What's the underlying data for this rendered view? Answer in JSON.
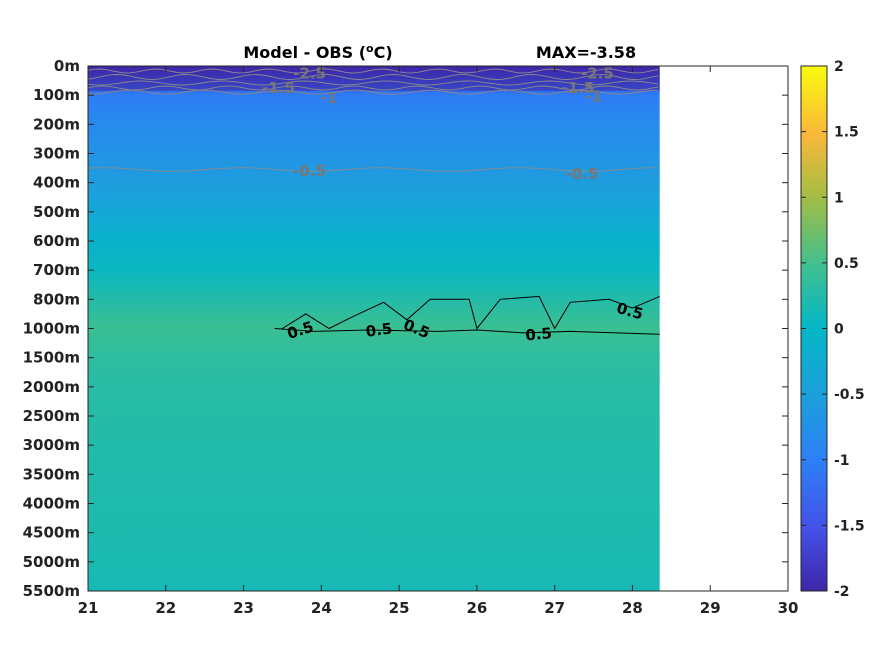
{
  "chart_data": {
    "type": "heatmap",
    "title": "Model - OBS (°C)",
    "title_parts": {
      "prefix": "Model - OBS (",
      "superscript": "o",
      "suffix": "C)"
    },
    "max_label": "MAX=-3.58",
    "x_ticks": [
      "21",
      "22",
      "23",
      "24",
      "25",
      "26",
      "27",
      "28",
      "29",
      "30"
    ],
    "xlim": [
      21,
      30
    ],
    "data_x_extent": [
      21,
      28.35
    ],
    "y_ticks": [
      "0m",
      "100m",
      "200m",
      "300m",
      "400m",
      "500m",
      "600m",
      "700m",
      "800m",
      "1000m",
      "1500m",
      "2000m",
      "2500m",
      "3000m",
      "3500m",
      "4000m",
      "4500m",
      "5000m",
      "5500m"
    ],
    "colorbar": {
      "range": [
        -2,
        2
      ],
      "ticks": [
        "2",
        "1.5",
        "1",
        "0.5",
        "0",
        "-0.5",
        "-1",
        "-1.5",
        "-2"
      ],
      "colormap": "parula"
    },
    "depth_profile": [
      -2.0,
      -1.05,
      -0.85,
      -0.7,
      -0.55,
      -0.35,
      -0.1,
      0.05,
      0.25,
      0.45,
      0.33,
      0.3,
      0.27,
      0.25,
      0.23,
      0.22,
      0.2,
      0.18,
      0.15
    ],
    "contour_labels": {
      "gray": [
        {
          "text": "-2.5",
          "x": 23.85,
          "depth_index": 0.25
        },
        {
          "text": "-1.5",
          "x": 23.45,
          "depth_index": 0.75
        },
        {
          "text": "-1",
          "x": 24.1,
          "depth_index": 1.1
        },
        {
          "text": "-2.5",
          "x": 27.55,
          "depth_index": 0.25
        },
        {
          "text": "-1.5",
          "x": 27.3,
          "depth_index": 0.75
        },
        {
          "text": "-1",
          "x": 27.5,
          "depth_index": 1.05
        },
        {
          "text": "-0.5",
          "x": 23.85,
          "depth_index": 3.6
        },
        {
          "text": "-0.5",
          "x": 27.35,
          "depth_index": 3.7
        }
      ],
      "dark": [
        {
          "text": "0.5",
          "x": 23.75,
          "depth_index": 9.05,
          "rotate": -18
        },
        {
          "text": "0.5",
          "x": 24.75,
          "depth_index": 9.05,
          "rotate": -8
        },
        {
          "text": "0.5",
          "x": 25.2,
          "depth_index": 9.0,
          "rotate": 22
        },
        {
          "text": "0.5",
          "x": 26.8,
          "depth_index": 9.2,
          "rotate": -5
        },
        {
          "text": "0.5",
          "x": 27.95,
          "depth_index": 8.4,
          "rotate": 15
        }
      ]
    }
  }
}
